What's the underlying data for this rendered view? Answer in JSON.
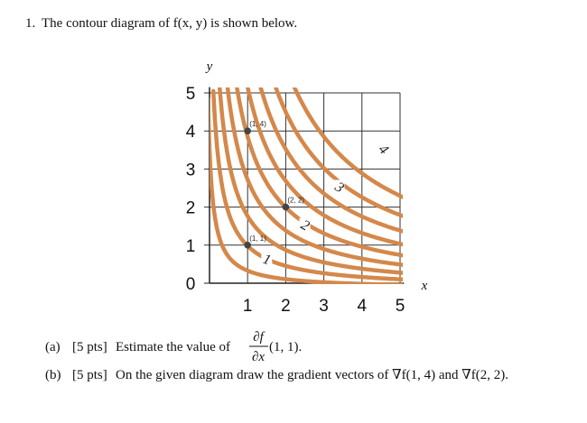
{
  "problem": {
    "number": "1.",
    "text": "The contour diagram of f(x, y) is shown below."
  },
  "diagram": {
    "y_label": "y",
    "x_label": "x",
    "x_ticks": [
      "1",
      "2",
      "3",
      "4",
      "5"
    ],
    "y_ticks": [
      "0",
      "1",
      "2",
      "3",
      "4",
      "5"
    ],
    "points": [
      "(1, 4)",
      "(2, 2)",
      "(1, 1)"
    ],
    "contour_labels": [
      "1",
      "2",
      "3",
      "4"
    ]
  },
  "parts": [
    {
      "label": "(a)",
      "points": "[5 pts]",
      "text": "Estimate the value of",
      "numerator": "∂f",
      "denominator": "∂x",
      "after": "(1, 1)."
    },
    {
      "label": "(b)",
      "points": "[5 pts]",
      "text": "On the given diagram draw the gradient vectors of ∇f(1, 4) and ∇f(2, 2)."
    }
  ]
}
